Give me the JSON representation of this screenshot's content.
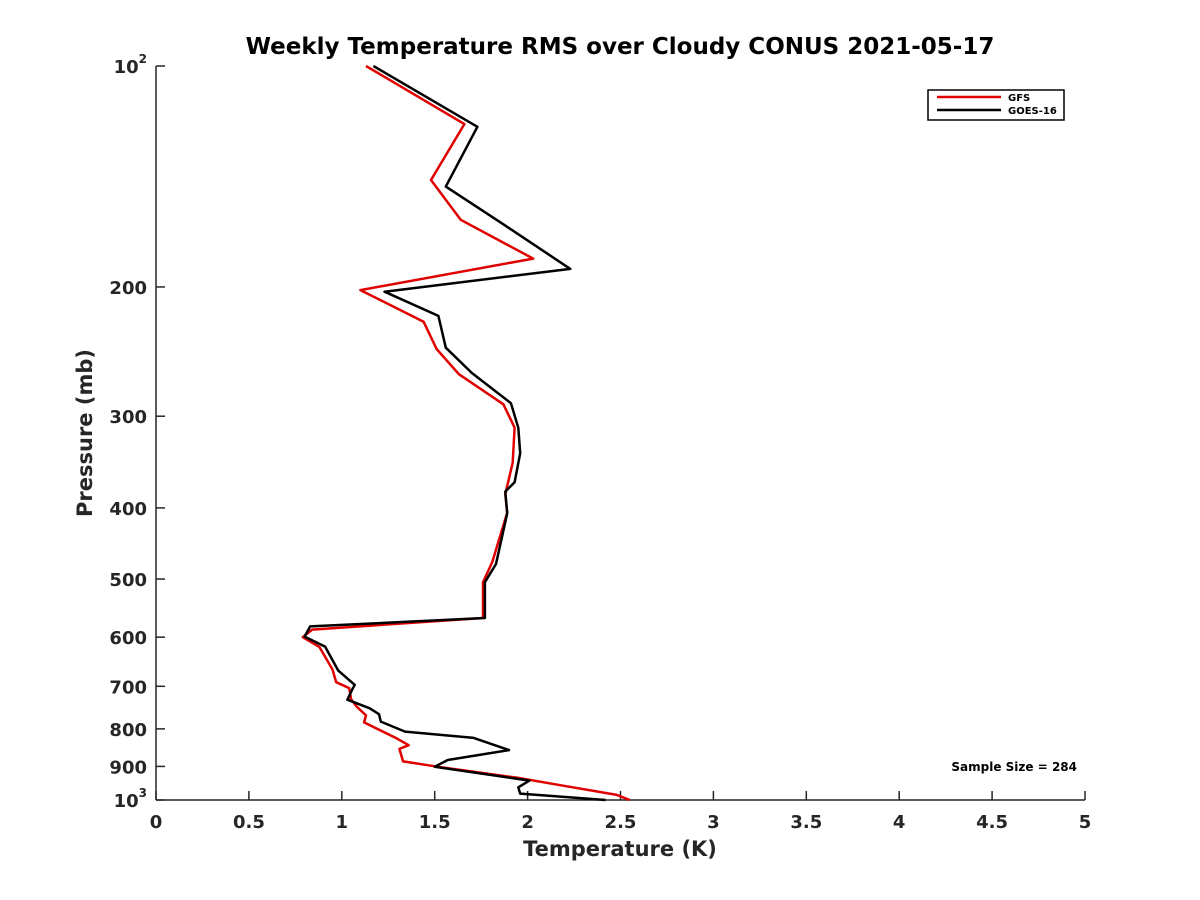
{
  "chart_data": {
    "type": "line",
    "title": "Weekly Temperature RMS over Cloudy CONUS 2021-05-17",
    "xlabel": "Temperature (K)",
    "ylabel": "Pressure (mb)",
    "xlim": [
      0,
      5
    ],
    "ylim": [
      100,
      1000
    ],
    "y_scale": "log",
    "y_reversed": true,
    "x_ticks": [
      "0",
      "0.5",
      "1",
      "1.5",
      "2",
      "2.5",
      "3",
      "3.5",
      "4",
      "4.5",
      "5"
    ],
    "y_ticks": [
      {
        "value": 100,
        "base": "10",
        "exp": "2"
      },
      {
        "value": 200,
        "label": "200"
      },
      {
        "value": 300,
        "label": "300"
      },
      {
        "value": 400,
        "label": "400"
      },
      {
        "value": 500,
        "label": "500"
      },
      {
        "value": 600,
        "label": "600"
      },
      {
        "value": 700,
        "label": "700"
      },
      {
        "value": 800,
        "label": "800"
      },
      {
        "value": 900,
        "label": "900"
      },
      {
        "value": 1000,
        "base": "10",
        "exp": "3"
      }
    ],
    "grid": false,
    "legend_position": "top-right",
    "annotation": "Sample Size = 284",
    "series": [
      {
        "name": "GFS",
        "color": "#e00000",
        "points": [
          [
            1.13,
            100
          ],
          [
            1.66,
            120
          ],
          [
            1.48,
            143
          ],
          [
            1.64,
            162
          ],
          [
            2.03,
            183
          ],
          [
            1.1,
            202
          ],
          [
            1.44,
            223
          ],
          [
            1.51,
            243
          ],
          [
            1.63,
            263
          ],
          [
            1.87,
            289
          ],
          [
            1.93,
            311
          ],
          [
            1.92,
            347
          ],
          [
            1.88,
            383
          ],
          [
            1.89,
            406
          ],
          [
            1.81,
            474
          ],
          [
            1.76,
            505
          ],
          [
            1.76,
            565
          ],
          [
            0.84,
            586
          ],
          [
            0.79,
            600
          ],
          [
            0.88,
            619
          ],
          [
            0.95,
            664
          ],
          [
            0.97,
            691
          ],
          [
            1.04,
            704
          ],
          [
            1.05,
            729
          ],
          [
            1.08,
            746
          ],
          [
            1.13,
            767
          ],
          [
            1.12,
            784
          ],
          [
            1.29,
            823
          ],
          [
            1.36,
            842
          ],
          [
            1.31,
            852
          ],
          [
            1.33,
            886
          ],
          [
            1.52,
            901
          ],
          [
            1.95,
            933
          ],
          [
            2.18,
            955
          ],
          [
            2.48,
            984
          ],
          [
            2.55,
            1000
          ]
        ]
      },
      {
        "name": "GOES-16",
        "color": "#000000",
        "points": [
          [
            1.17,
            100
          ],
          [
            1.73,
            121
          ],
          [
            1.56,
            146
          ],
          [
            1.88,
            165
          ],
          [
            2.23,
            189
          ],
          [
            1.23,
            203
          ],
          [
            1.52,
            219
          ],
          [
            1.56,
            242
          ],
          [
            1.7,
            262
          ],
          [
            1.91,
            288
          ],
          [
            1.95,
            311
          ],
          [
            1.96,
            337
          ],
          [
            1.93,
            369
          ],
          [
            1.88,
            380
          ],
          [
            1.89,
            407
          ],
          [
            1.83,
            477
          ],
          [
            1.77,
            505
          ],
          [
            1.77,
            565
          ],
          [
            0.83,
            580
          ],
          [
            0.8,
            599
          ],
          [
            0.91,
            618
          ],
          [
            0.98,
            666
          ],
          [
            1.07,
            697
          ],
          [
            1.06,
            704
          ],
          [
            1.03,
            730
          ],
          [
            1.15,
            750
          ],
          [
            1.2,
            764
          ],
          [
            1.21,
            782
          ],
          [
            1.34,
            807
          ],
          [
            1.71,
            823
          ],
          [
            1.9,
            855
          ],
          [
            1.57,
            882
          ],
          [
            1.5,
            901
          ],
          [
            2.01,
            941
          ],
          [
            1.95,
            961
          ],
          [
            1.96,
            980
          ],
          [
            2.42,
            1000
          ]
        ]
      }
    ]
  }
}
